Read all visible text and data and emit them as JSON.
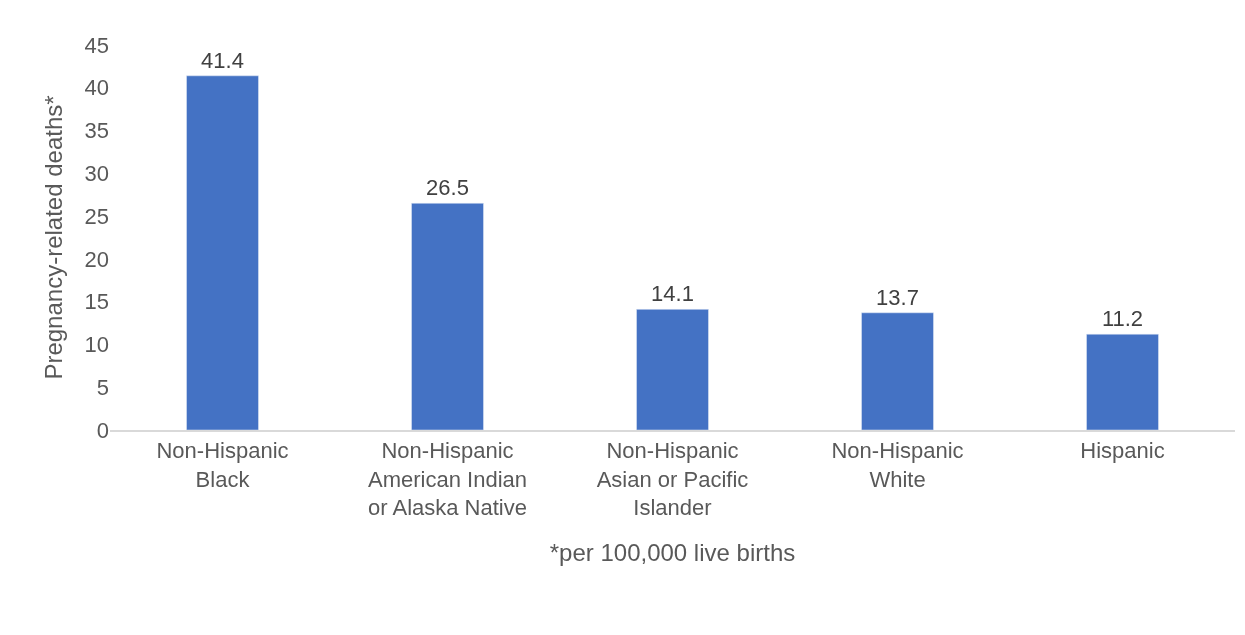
{
  "chart_data": {
    "type": "bar",
    "ylabel": "Pregnancy-related deaths*",
    "xlabel": "*per 100,000 live births",
    "categories": [
      "Non-Hispanic Black",
      "Non-Hispanic American Indian or Alaska Native",
      "Non-Hispanic Asian or Pacific Islander",
      "Non-Hispanic White",
      "Hispanic"
    ],
    "values": [
      41.4,
      26.5,
      14.1,
      13.7,
      11.2
    ],
    "color": "#4472c4",
    "ylim": [
      0,
      45
    ],
    "yticks": [
      0,
      5,
      10,
      15,
      20,
      25,
      30,
      35,
      40,
      45
    ],
    "grid": false,
    "data_labels": true
  }
}
